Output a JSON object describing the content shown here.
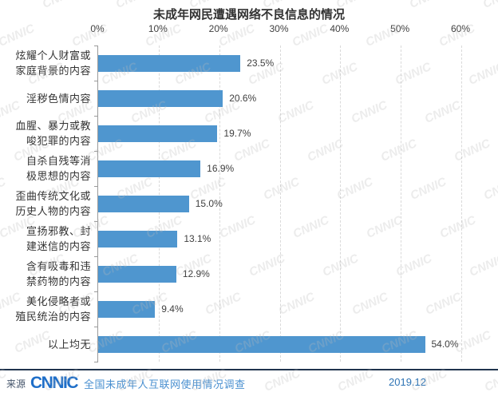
{
  "title": "未成年网民遭遇网络不良信息的情况",
  "chart_data": {
    "type": "bar",
    "orientation": "horizontal",
    "title": "未成年网民遭遇网络不良信息的情况",
    "categories": [
      "炫耀个人财富或家庭背景的内容",
      "淫秽色情内容",
      "血腥、暴力或教唆犯罪的内容",
      "自杀自残等消极思想的内容",
      "歪曲传统文化或历史人物的内容",
      "宣扬邪教、封建迷信的内容",
      "含有吸毒和违禁药物的内容",
      "美化侵略者或殖民统治的内容",
      "以上均无"
    ],
    "category_lines": [
      [
        "炫耀个人财富或",
        "家庭背景的内容"
      ],
      [
        "淫秽色情内容"
      ],
      [
        "血腥、暴力或教",
        "唆犯罪的内容"
      ],
      [
        "自杀自残等消",
        "极思想的内容"
      ],
      [
        "歪曲传统文化或",
        "历史人物的内容"
      ],
      [
        "宣扬邪教、封",
        "建迷信的内容"
      ],
      [
        "含有吸毒和违",
        "禁药物的内容"
      ],
      [
        "美化侵略者或",
        "殖民统治的内容"
      ],
      [
        "以上均无"
      ]
    ],
    "values": [
      23.5,
      20.6,
      19.7,
      16.9,
      15.0,
      13.1,
      12.9,
      9.4,
      54.0
    ],
    "value_labels": [
      "23.5%",
      "20.6%",
      "19.7%",
      "16.9%",
      "15.0%",
      "13.1%",
      "12.9%",
      "9.4%",
      "54.0%"
    ],
    "x_ticks": [
      "0%",
      "10%",
      "20%",
      "30%",
      "40%",
      "50%",
      "60%"
    ],
    "xlim": [
      0,
      60
    ],
    "xlabel": "",
    "ylabel": "",
    "grid": "vertical-dashed",
    "legend": "none",
    "bar_color": "#4f96cf"
  },
  "footer": {
    "source_label": "来源",
    "logo_text": "CNNIC",
    "survey_name": "全国未成年人互联网使用情况调查",
    "date": "2019.12"
  },
  "watermark": {
    "text": "CNNIC"
  },
  "colors": {
    "bar": "#4f96cf",
    "axis_text": "#404040",
    "category_text": "#333333",
    "gridline": "#d9d9d9",
    "axis_line": "#9a9a9a",
    "footer_rule": "#20344e",
    "logo_blue": "#1e6ec8",
    "survey_blue": "#4a90d0",
    "date_blue": "#2e74b5"
  }
}
